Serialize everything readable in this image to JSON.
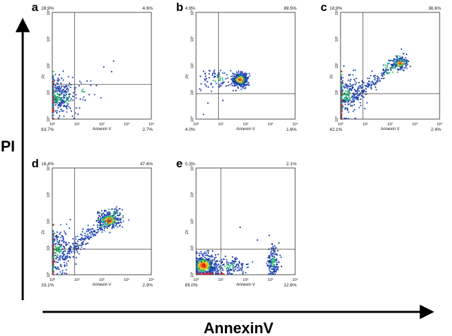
{
  "figure": {
    "y_axis_title": "PI",
    "x_axis_title": "AnnexinV"
  },
  "chart_data": [
    {
      "type": "scatter",
      "panel": "a",
      "xlabel": "Annexin V",
      "ylabel": "PI",
      "x_scale": "log",
      "y_scale": "log",
      "xlim": [
        1,
        10000
      ],
      "ylim": [
        1,
        10000
      ],
      "x_ticks": [
        "10⁰",
        "10¹",
        "10²",
        "10³",
        "10⁴"
      ],
      "y_ticks": [
        "10⁰",
        "10¹",
        "10²",
        "10³",
        "10⁴"
      ],
      "x_gate": 8,
      "y_gate": 20,
      "quadrants": {
        "upper_left": "28.9%",
        "upper_right": "4.6%",
        "lower_left": "63.7%",
        "lower_right": "2.7%"
      },
      "clusters": [
        {
          "x": 1.6,
          "y": 7,
          "sx": 0.3,
          "sy": 0.35,
          "n": 260,
          "dense": false
        },
        {
          "x": 4,
          "y": 6,
          "sx": 0.3,
          "sy": 0.3,
          "n": 60,
          "dense": false
        },
        {
          "x": 20,
          "y": 12,
          "sx": 0.35,
          "sy": 0.3,
          "n": 14,
          "dense": false
        }
      ],
      "edge_x": true,
      "edge_y": false,
      "points": [
        {
          "x": 300,
          "y": 150
        },
        {
          "x": 120,
          "y": 90
        },
        {
          "x": 250,
          "y": 60
        }
      ]
    },
    {
      "type": "scatter",
      "panel": "b",
      "xlabel": "Annexin V",
      "ylabel": "PI",
      "x_scale": "log",
      "y_scale": "log",
      "xlim": [
        1,
        10000
      ],
      "ylim": [
        1,
        10000
      ],
      "x_ticks": [
        "10⁰",
        "10¹",
        "10²",
        "10³",
        "10⁴"
      ],
      "y_ticks": [
        "10⁰",
        "10¹",
        "10²",
        "10³",
        "10⁴"
      ],
      "x_gate": 8,
      "y_gate": 9,
      "quadrants": {
        "upper_left": "4.9%",
        "upper_right": "89.5%",
        "lower_left": "4.0%",
        "lower_right": "1.6%"
      },
      "clusters": [
        {
          "x": 60,
          "y": 30,
          "sx": 0.15,
          "sy": 0.12,
          "n": 520,
          "dense": true
        },
        {
          "x": 8,
          "y": 30,
          "sx": 0.35,
          "sy": 0.2,
          "n": 70,
          "dense": false
        }
      ],
      "edge_x": false,
      "edge_y": false,
      "points": [
        {
          "x": 2,
          "y": 1.5
        },
        {
          "x": 3,
          "y": 4
        },
        {
          "x": 12,
          "y": 5
        },
        {
          "x": 1.5,
          "y": 40
        }
      ]
    },
    {
      "type": "scatter",
      "panel": "c",
      "xlabel": "Annexin V",
      "ylabel": "PI",
      "x_scale": "log",
      "y_scale": "log",
      "xlim": [
        1,
        10000
      ],
      "ylim": [
        1,
        10000
      ],
      "x_ticks": [
        "10⁰",
        "10¹",
        "10²",
        "10³",
        "10⁴"
      ],
      "y_ticks": [
        "10⁰",
        "10¹",
        "10²",
        "10³",
        "10⁴"
      ],
      "x_gate": 8,
      "y_gate": 9,
      "quadrants": {
        "upper_left": "18.9%",
        "upper_right": "36.6%",
        "lower_left": "42.1%",
        "lower_right": "2.4%"
      },
      "clusters": [
        {
          "x": 1.8,
          "y": 8,
          "sx": 0.3,
          "sy": 0.4,
          "n": 240,
          "dense": false
        },
        {
          "x": 250,
          "y": 120,
          "sx": 0.15,
          "sy": 0.1,
          "n": 170,
          "dense": true
        }
      ],
      "diagonal": {
        "x0": 3,
        "y0": 6,
        "x1": 400,
        "y1": 250,
        "n": 180
      },
      "edge_x": true,
      "edge_y": false,
      "points": []
    },
    {
      "type": "scatter",
      "panel": "d",
      "xlabel": "Annexin V",
      "ylabel": "PI",
      "x_scale": "log",
      "y_scale": "log",
      "xlim": [
        1,
        10000
      ],
      "ylim": [
        1,
        10000
      ],
      "x_ticks": [
        "10⁰",
        "10¹",
        "10²",
        "10³",
        "10⁴"
      ],
      "y_ticks": [
        "10⁰",
        "10¹",
        "10²",
        "10³",
        "10⁴"
      ],
      "x_gate": 8,
      "y_gate": 9,
      "quadrants": {
        "upper_left": "16.4%",
        "upper_right": "47.6%",
        "lower_left": "33.1%",
        "lower_right": "2.9%"
      },
      "clusters": [
        {
          "x": 1.7,
          "y": 8,
          "sx": 0.25,
          "sy": 0.4,
          "n": 220,
          "dense": false
        },
        {
          "x": 200,
          "y": 110,
          "sx": 0.22,
          "sy": 0.15,
          "n": 260,
          "dense": true
        }
      ],
      "diagonal": {
        "x0": 3,
        "y0": 5,
        "x1": 500,
        "y1": 300,
        "n": 220
      },
      "edge_x": true,
      "edge_y": false,
      "points": []
    },
    {
      "type": "scatter",
      "panel": "e",
      "xlabel": "Annexin V",
      "ylabel": "PI",
      "x_scale": "log",
      "y_scale": "log",
      "xlim": [
        1,
        10000
      ],
      "ylim": [
        1,
        10000
      ],
      "x_ticks": [
        "10⁰",
        "10¹",
        "10²",
        "10³",
        "10⁴"
      ],
      "y_ticks": [
        "10⁰",
        "10¹",
        "10²",
        "10³",
        "10⁴"
      ],
      "x_gate": 10,
      "y_gate": 9,
      "quadrants": {
        "upper_left": "0.3%",
        "upper_right": "2.1%",
        "lower_left": "85.0%",
        "lower_right": "12.6%"
      },
      "clusters": [
        {
          "x": 2,
          "y": 2.2,
          "sx": 0.25,
          "sy": 0.2,
          "n": 520,
          "dense": true
        },
        {
          "x": 20,
          "y": 2,
          "sx": 0.45,
          "sy": 0.15,
          "n": 140,
          "dense": false
        },
        {
          "x": 1300,
          "y": 3,
          "sx": 0.12,
          "sy": 0.3,
          "n": 150,
          "dense": false
        }
      ],
      "edge_x": false,
      "edge_y": true,
      "points": [
        {
          "x": 60,
          "y": 60
        },
        {
          "x": 300,
          "y": 20
        },
        {
          "x": 900,
          "y": 30
        },
        {
          "x": 1500,
          "y": 12
        }
      ]
    }
  ]
}
